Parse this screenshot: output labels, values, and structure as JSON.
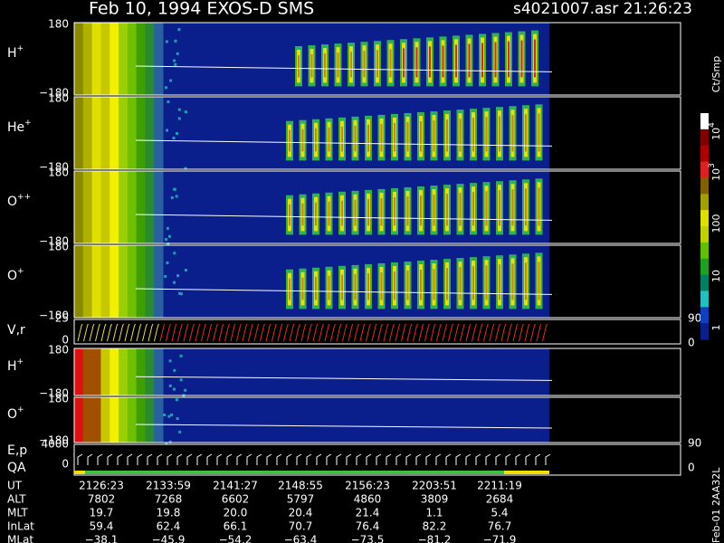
{
  "header": {
    "title": "Feb 10, 1994   EXOS-D SMS",
    "file": "s4021007.asr  21:26:23"
  },
  "panels": [
    {
      "species": "H",
      "charge": "+",
      "top": "180",
      "bottom": "−180"
    },
    {
      "species": "He",
      "charge": "+",
      "top": "180",
      "bottom": "−180"
    },
    {
      "species": "O",
      "charge": "++",
      "top": "180",
      "bottom": "−180"
    },
    {
      "species": "O",
      "charge": "+",
      "top": "180",
      "bottom": "−180"
    },
    {
      "species": "H",
      "charge": "+",
      "top": "180",
      "bottom": "−180"
    },
    {
      "species": "O",
      "charge": "+",
      "top": "180",
      "bottom": "−180"
    }
  ],
  "vr": {
    "label": "V,r",
    "top": "25",
    "bottom": "0",
    "right_top": "90",
    "right_bottom": "0"
  },
  "ep": {
    "label": "E,p",
    "label2": "QA",
    "top": "4000",
    "bottom": "0",
    "right_top": "90",
    "right_bottom": "0"
  },
  "colorbar": {
    "unit": "Ct/Smp",
    "ticks": [
      {
        "base": "10",
        "sup": "4"
      },
      {
        "base": "10",
        "sup": "3"
      },
      {
        "base": "100"
      },
      {
        "base": "10"
      },
      {
        "base": "1"
      }
    ]
  },
  "table": {
    "rows": [
      [
        "UT",
        "2126:23",
        "2133:59",
        "2141:27",
        "2148:55",
        "2156:23",
        "2203:51",
        "2211:19"
      ],
      [
        "ALT",
        "7802",
        "7268",
        "6602",
        "5797",
        "4860",
        "3809",
        "2684"
      ],
      [
        "MLT",
        "19.7",
        "19.8",
        "20.0",
        "20.4",
        "21.4",
        "1.1",
        "5.4"
      ],
      [
        "InLat",
        "59.4",
        "62.4",
        "66.1",
        "70.7",
        "76.4",
        "82.2",
        "76.7"
      ],
      [
        "MLat",
        "−38.1",
        "−45.9",
        "−54.2",
        "−63.4",
        "−73.5",
        "−81.2",
        "−71.9"
      ]
    ]
  },
  "footer": "Feb-01 2AA32L"
}
